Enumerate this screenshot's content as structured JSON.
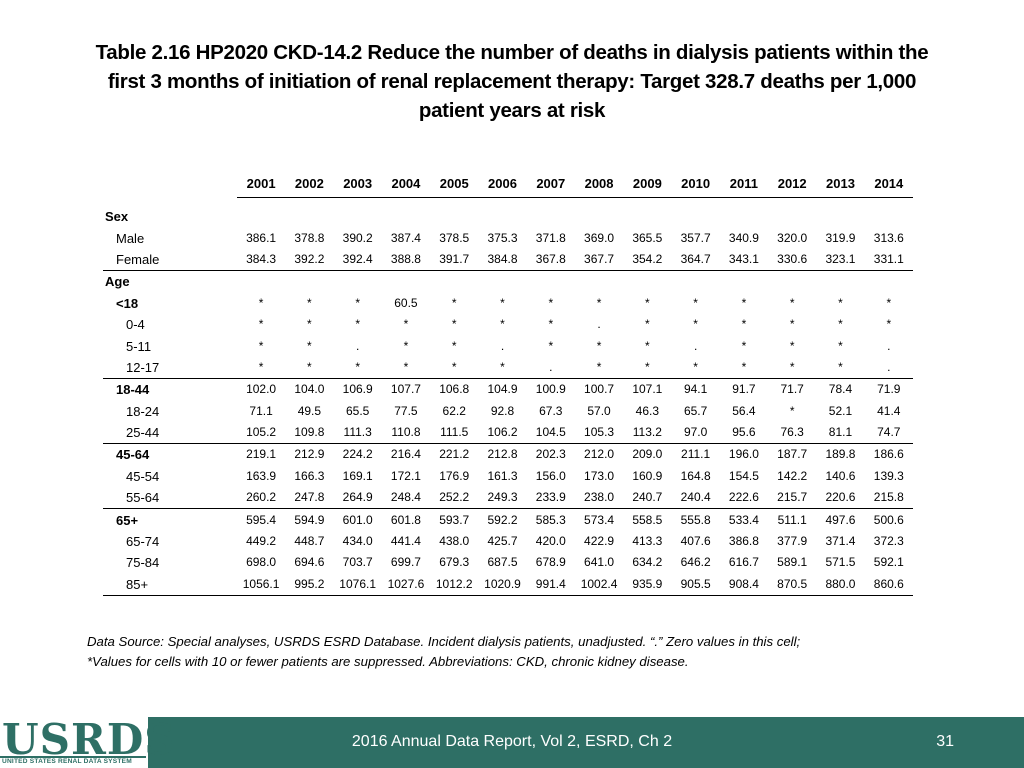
{
  "title": {
    "line1": "Table 2.16  HP2020 CKD-14.2 Reduce the number of deaths in dialysis patients within the",
    "line2": "first 3 months of initiation of renal replacement therapy: Target 328.7 deaths per 1,000",
    "line3": "patient years at risk"
  },
  "table": {
    "years": [
      "2001",
      "2002",
      "2003",
      "2004",
      "2005",
      "2006",
      "2007",
      "2008",
      "2009",
      "2010",
      "2011",
      "2012",
      "2013",
      "2014"
    ],
    "sections": [
      {
        "label": "Sex",
        "rows": [
          {
            "label": "Male",
            "level": 1,
            "bold": false,
            "values": [
              "386.1",
              "378.8",
              "390.2",
              "387.4",
              "378.5",
              "375.3",
              "371.8",
              "369.0",
              "365.5",
              "357.7",
              "340.9",
              "320.0",
              "319.9",
              "313.6"
            ]
          },
          {
            "label": "Female",
            "level": 1,
            "bold": false,
            "values": [
              "384.3",
              "392.2",
              "392.4",
              "388.8",
              "391.7",
              "384.8",
              "367.8",
              "367.7",
              "354.2",
              "364.7",
              "343.1",
              "330.6",
              "323.1",
              "331.1"
            ]
          }
        ]
      },
      {
        "label": "Age",
        "rows": [
          {
            "label": "<18",
            "level": 1,
            "bold": true,
            "values": [
              "*",
              "*",
              "*",
              "60.5",
              "*",
              "*",
              "*",
              "*",
              "*",
              "*",
              "*",
              "*",
              "*",
              "*"
            ]
          },
          {
            "label": "0-4",
            "level": 2,
            "bold": false,
            "values": [
              "*",
              "*",
              "*",
              "*",
              "*",
              "*",
              "*",
              ".",
              "*",
              "*",
              "*",
              "*",
              "*",
              "*"
            ]
          },
          {
            "label": "5-11",
            "level": 2,
            "bold": false,
            "values": [
              "*",
              "*",
              ".",
              "*",
              "*",
              ".",
              "*",
              "*",
              "*",
              ".",
              "*",
              "*",
              "*",
              "."
            ]
          },
          {
            "label": "12-17",
            "level": 2,
            "bold": false,
            "values": [
              "*",
              "*",
              "*",
              "*",
              "*",
              "*",
              ".",
              "*",
              "*",
              "*",
              "*",
              "*",
              "*",
              "."
            ]
          },
          {
            "label": "18-44",
            "level": 1,
            "bold": true,
            "top": true,
            "values": [
              "102.0",
              "104.0",
              "106.9",
              "107.7",
              "106.8",
              "104.9",
              "100.9",
              "100.7",
              "107.1",
              "94.1",
              "91.7",
              "71.7",
              "78.4",
              "71.9"
            ]
          },
          {
            "label": "18-24",
            "level": 2,
            "bold": false,
            "values": [
              "71.1",
              "49.5",
              "65.5",
              "77.5",
              "62.2",
              "92.8",
              "67.3",
              "57.0",
              "46.3",
              "65.7",
              "56.4",
              "*",
              "52.1",
              "41.4"
            ]
          },
          {
            "label": "25-44",
            "level": 2,
            "bold": false,
            "values": [
              "105.2",
              "109.8",
              "111.3",
              "110.8",
              "111.5",
              "106.2",
              "104.5",
              "105.3",
              "113.2",
              "97.0",
              "95.6",
              "76.3",
              "81.1",
              "74.7"
            ]
          },
          {
            "label": "45-64",
            "level": 1,
            "bold": true,
            "top": true,
            "values": [
              "219.1",
              "212.9",
              "224.2",
              "216.4",
              "221.2",
              "212.8",
              "202.3",
              "212.0",
              "209.0",
              "211.1",
              "196.0",
              "187.7",
              "189.8",
              "186.6"
            ]
          },
          {
            "label": "45-54",
            "level": 2,
            "bold": false,
            "values": [
              "163.9",
              "166.3",
              "169.1",
              "172.1",
              "176.9",
              "161.3",
              "156.0",
              "173.0",
              "160.9",
              "164.8",
              "154.5",
              "142.2",
              "140.6",
              "139.3"
            ]
          },
          {
            "label": "55-64",
            "level": 2,
            "bold": false,
            "values": [
              "260.2",
              "247.8",
              "264.9",
              "248.4",
              "252.2",
              "249.3",
              "233.9",
              "238.0",
              "240.7",
              "240.4",
              "222.6",
              "215.7",
              "220.6",
              "215.8"
            ]
          },
          {
            "label": "65+",
            "level": 1,
            "bold": true,
            "top": true,
            "values": [
              "595.4",
              "594.9",
              "601.0",
              "601.8",
              "593.7",
              "592.2",
              "585.3",
              "573.4",
              "558.5",
              "555.8",
              "533.4",
              "511.1",
              "497.6",
              "500.6"
            ]
          },
          {
            "label": "65-74",
            "level": 2,
            "bold": false,
            "values": [
              "449.2",
              "448.7",
              "434.0",
              "441.4",
              "438.0",
              "425.7",
              "420.0",
              "422.9",
              "413.3",
              "407.6",
              "386.8",
              "377.9",
              "371.4",
              "372.3"
            ]
          },
          {
            "label": "75-84",
            "level": 2,
            "bold": false,
            "values": [
              "698.0",
              "694.6",
              "703.7",
              "699.7",
              "679.3",
              "687.5",
              "678.9",
              "641.0",
              "634.2",
              "646.2",
              "616.7",
              "589.1",
              "571.5",
              "592.1"
            ]
          },
          {
            "label": "85+",
            "level": 2,
            "bold": false,
            "last": true,
            "values": [
              "1056.1",
              "995.2",
              "1076.1",
              "1027.6",
              "1012.2",
              "1020.9",
              "991.4",
              "1002.4",
              "935.9",
              "905.5",
              "908.4",
              "870.5",
              "880.0",
              "860.6"
            ]
          }
        ]
      }
    ]
  },
  "source": {
    "line1": "Data Source: Special analyses, USRDS ESRD Database. Incident dialysis patients, unadjusted. “.” Zero values in this cell;",
    "line2": "*Values for cells with 10 or fewer patients are suppressed. Abbreviations: CKD, chronic kidney disease."
  },
  "footer": {
    "logo_text": "USRDS",
    "logo_subtext": "UNITED STATES RENAL DATA SYSTEM",
    "report_label": "2016 Annual Data Report, Vol 2, ESRD, Ch 2",
    "page_number": "31"
  },
  "colors": {
    "footer_bg": "#2e6f65",
    "logo": "#2e6f65"
  }
}
